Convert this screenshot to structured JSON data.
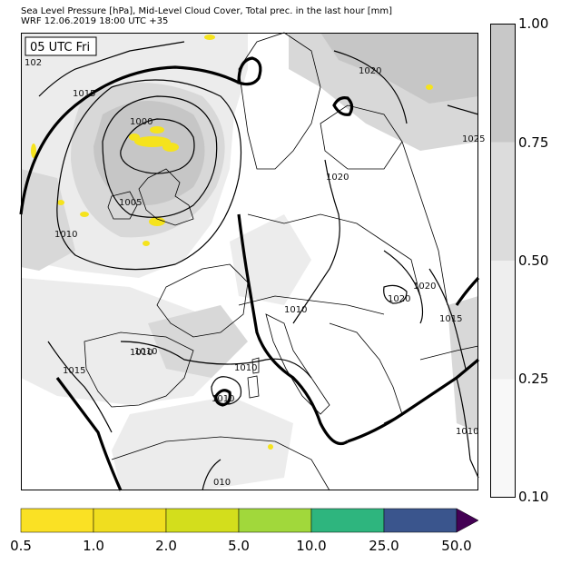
{
  "header": {
    "line1": "Sea Level Pressure [hPa], Mid-Level Cloud Cover, Total prec. in the last hour [mm]",
    "line2": "WRF 12.06.2019 18:00 UTC +35"
  },
  "map": {
    "time_label": "05 UTC Fri",
    "isobar_labels": [
      "1000",
      "1005",
      "1010",
      "1015",
      "1020",
      "1025",
      "1010",
      "1010",
      "1010",
      "1020",
      "1015",
      "1010",
      "1015",
      "1020",
      "1010",
      "1020",
      "1010",
      "102",
      "010"
    ],
    "colors": {
      "coast": "#000000",
      "isobar": "#000000",
      "cloud_light": "#ececec",
      "cloud_mid": "#d8d8d8",
      "cloud_dark": "#c6c6c6",
      "precip": "#f5e31d"
    }
  },
  "cloud_colorbar": {
    "ticks": [
      "1.00",
      "0.75",
      "0.50",
      "0.25",
      "0.10"
    ],
    "colors": [
      "#c8c8c8",
      "#dcdcdc",
      "#eeeeee",
      "#f8f8f8"
    ]
  },
  "precip_colorbar": {
    "ticks": [
      "0.5",
      "1.0",
      "2.0",
      "5.0",
      "10.0",
      "25.0",
      "50.0"
    ],
    "colors": [
      "#fae124",
      "#f0de1f",
      "#d3de1c",
      "#a1d83b",
      "#2eb57e",
      "#3a558d",
      "#440154"
    ]
  }
}
